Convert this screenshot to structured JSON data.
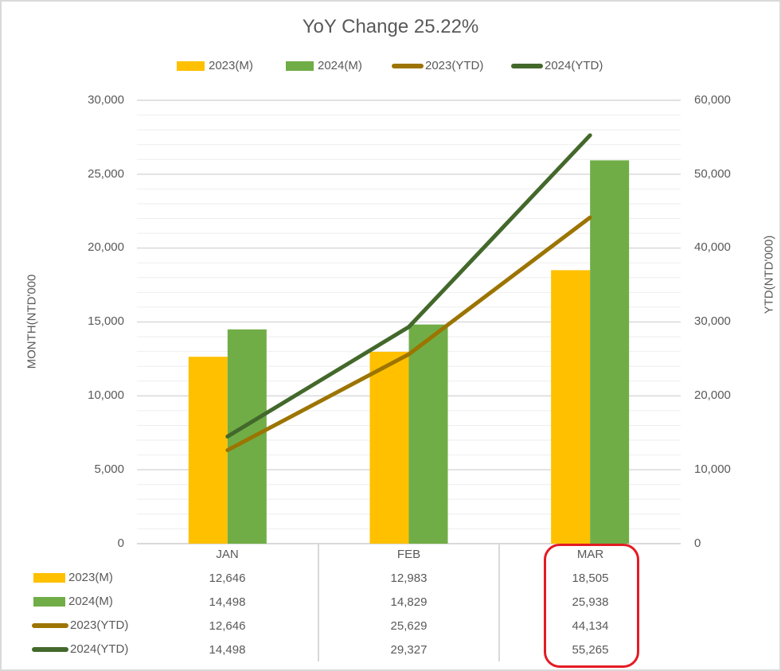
{
  "chart_data": {
    "type": "bar",
    "combo": "clustered bar + line (secondary axis) with data table",
    "title": "YoY Change 25.22%",
    "categories": [
      "JAN",
      "FEB",
      "MAR"
    ],
    "series": [
      {
        "name": "2023(M)",
        "type": "bar",
        "axis": "left",
        "color": "#ffc000",
        "values": [
          12646,
          12983,
          18505
        ]
      },
      {
        "name": "2024(M)",
        "type": "bar",
        "axis": "left",
        "color": "#70ad47",
        "values": [
          14498,
          14829,
          25938
        ]
      },
      {
        "name": "2023(YTD)",
        "type": "line",
        "axis": "right",
        "color": "#9c7400",
        "values": [
          12646,
          25629,
          44134
        ]
      },
      {
        "name": "2024(YTD)",
        "type": "line",
        "axis": "right",
        "color": "#43682b",
        "values": [
          14498,
          29327,
          55265
        ]
      }
    ],
    "ylabel": "MONTH(NTD'000",
    "y2label": "YTD(NTD'000)",
    "ylim": [
      0,
      30000
    ],
    "y2lim": [
      0,
      60000
    ],
    "yticks": [
      "0",
      "5,000",
      "10,000",
      "15,000",
      "20,000",
      "25,000",
      "30,000"
    ],
    "y2ticks": [
      "0",
      "10,000",
      "20,000",
      "30,000",
      "40,000",
      "50,000",
      "60,000"
    ],
    "grid": true,
    "legend_position": "top",
    "data_table": true,
    "annotation": "red rounded rectangle highlighting MAR column of data table"
  },
  "title": "YoY Change 25.22%",
  "legend": [
    {
      "label": "2023(M)",
      "kind": "bar",
      "color": "#ffc000"
    },
    {
      "label": "2024(M)",
      "kind": "bar",
      "color": "#70ad47"
    },
    {
      "label": "2023(YTD)",
      "kind": "line",
      "color": "#9c7400"
    },
    {
      "label": "2024(YTD)",
      "kind": "line",
      "color": "#43682b"
    }
  ],
  "axes": {
    "left_title": "MONTH(NTD'000",
    "right_title": "YTD(NTD'000)",
    "left_ticks": [
      "30,000",
      "25,000",
      "20,000",
      "15,000",
      "10,000",
      "5,000",
      "0"
    ],
    "right_ticks": [
      "60,000",
      "50,000",
      "40,000",
      "30,000",
      "20,000",
      "10,000",
      "0"
    ]
  },
  "table": {
    "headers": [
      "JAN",
      "FEB",
      "MAR"
    ],
    "rows": [
      {
        "label": "2023(M)",
        "values": [
          "12,646",
          "12,983",
          "18,505"
        ]
      },
      {
        "label": "2024(M)",
        "values": [
          "14,498",
          "14,829",
          "25,938"
        ]
      },
      {
        "label": "2023(YTD)",
        "values": [
          "12,646",
          "25,629",
          "44,134"
        ]
      },
      {
        "label": "2024(YTD)",
        "values": [
          "14,498",
          "29,327",
          "55,265"
        ]
      }
    ]
  },
  "highlight_color": "#e31b23"
}
